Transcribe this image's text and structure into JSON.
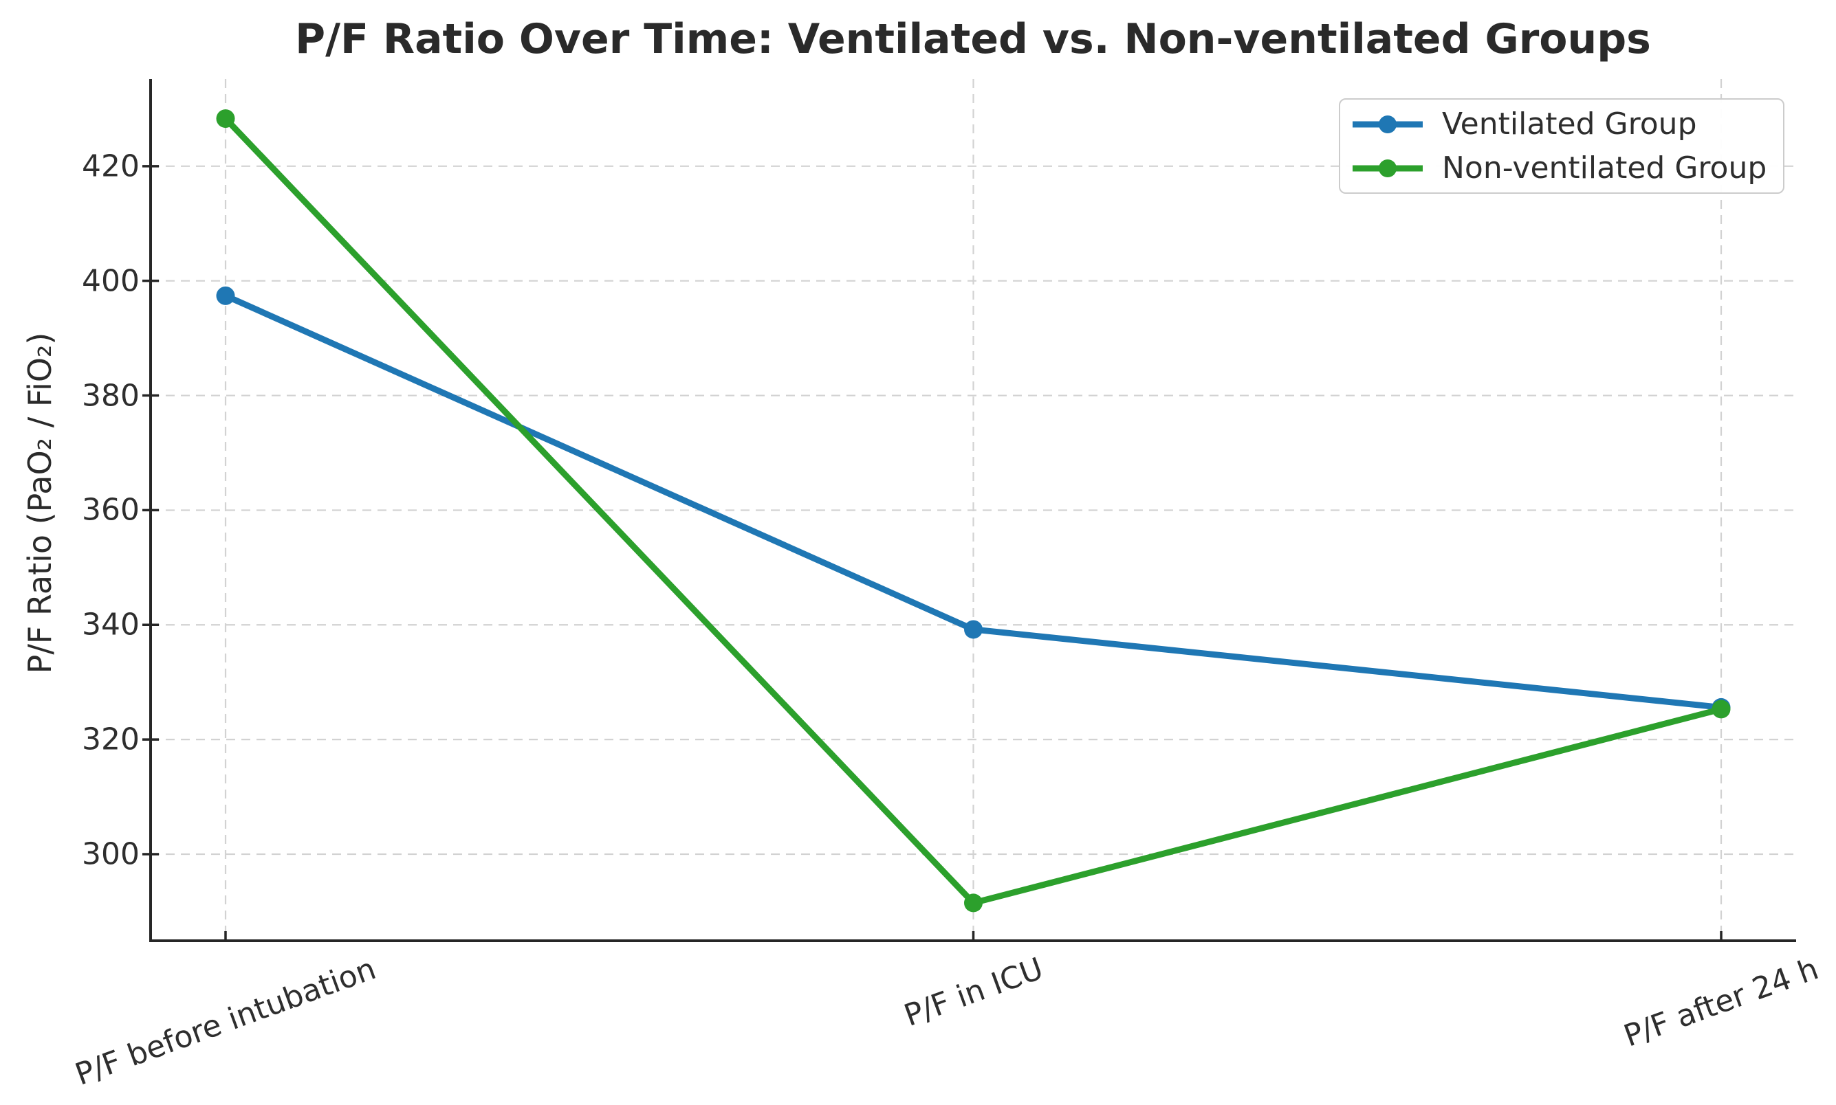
{
  "chart_data": {
    "type": "line",
    "title": "P/F Ratio Over Time: Ventilated vs. Non-ventilated Groups",
    "xlabel": "",
    "ylabel": "P/F Ratio (PaO₂ / FiO₂)",
    "categories": [
      "P/F before intubation",
      "P/F in ICU",
      "P/F after 24 h"
    ],
    "series": [
      {
        "name": "Ventilated Group",
        "color": "#1f77b4",
        "values": [
          397.4,
          339.2,
          325.6
        ]
      },
      {
        "name": "Non-ventilated Group",
        "color": "#2ca02c",
        "values": [
          428.3,
          291.5,
          325.3
        ]
      }
    ],
    "yticks": [
      300,
      320,
      340,
      360,
      380,
      400,
      420
    ],
    "ylim": [
      284.9,
      435.2
    ],
    "grid": true,
    "grid_style": "dashed",
    "legend_position": "upper right",
    "x_tick_rotation_deg": 20,
    "marker": "circle",
    "line_width": 9,
    "marker_radius": 13.5
  },
  "style": {
    "background": "#ffffff",
    "grid_color": "#d2d2d2",
    "spine_color": "#262626",
    "tick_color": "#262626",
    "title_color": "#2a2a2a",
    "text_color": "#2e2e2e",
    "legend_border_color": "#cccccc"
  }
}
